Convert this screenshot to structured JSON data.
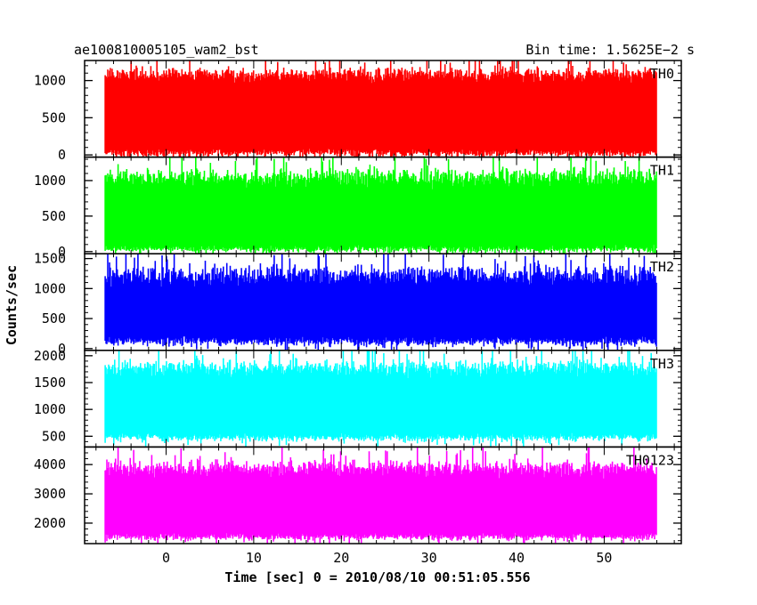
{
  "header": {
    "left_title": "ae100810005105_wam2_bst",
    "right_title": "Bin time: 1.5625E−2 s"
  },
  "chart_data": {
    "type": "line",
    "xlabel": "Time [sec] 0 = 2010/08/10 00:51:05.556",
    "ylabel": "Counts/sec",
    "xlim": [
      -9.3,
      58.8
    ],
    "x_ticks": [
      0,
      10,
      20,
      30,
      40,
      50
    ],
    "x_minor_step": 2,
    "data_x_range": [
      -7.0,
      56.0
    ],
    "bin_time": 0.015625,
    "grid": false,
    "panels": [
      {
        "name": "TH0",
        "color": "#ff0000",
        "ylim": [
          -30,
          1270
        ],
        "y_ticks": [
          0,
          500,
          1000
        ],
        "y_minor_step": 100,
        "envelope": {
          "lower_mean": 20,
          "lower_spread": 80,
          "upper_mean": 1090,
          "upper_spread": 160
        }
      },
      {
        "name": "TH1",
        "color": "#00ff00",
        "ylim": [
          -30,
          1330
        ],
        "y_ticks": [
          0,
          500,
          1000
        ],
        "y_minor_step": 100,
        "envelope": {
          "lower_mean": 30,
          "lower_spread": 80,
          "upper_mean": 1050,
          "upper_spread": 220
        }
      },
      {
        "name": "TH2",
        "color": "#0000ff",
        "ylim": [
          -30,
          1580
        ],
        "y_ticks": [
          0,
          500,
          1000,
          1500
        ],
        "y_minor_step": 100,
        "envelope": {
          "lower_mean": 110,
          "lower_spread": 120,
          "upper_mean": 1230,
          "upper_spread": 260
        }
      },
      {
        "name": "TH3",
        "color": "#00ffff",
        "ylim": [
          300,
          2100
        ],
        "y_ticks": [
          500,
          1000,
          1500,
          2000
        ],
        "y_minor_step": 100,
        "envelope": {
          "lower_mean": 470,
          "lower_spread": 120,
          "upper_mean": 1780,
          "upper_spread": 260
        }
      },
      {
        "name": "TH0123",
        "color": "#ff00ff",
        "ylim": [
          1300,
          4600
        ],
        "y_ticks": [
          2000,
          3000,
          4000
        ],
        "y_minor_step": 200,
        "envelope": {
          "lower_mean": 1520,
          "lower_spread": 200,
          "upper_mean": 3900,
          "upper_spread": 450
        }
      }
    ]
  }
}
